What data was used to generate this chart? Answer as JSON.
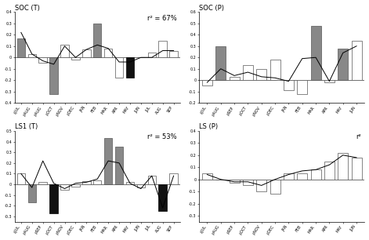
{
  "soc_t": {
    "title": "SOC (T)",
    "r2": "r² = 67%",
    "labels": [
      "pJUL",
      "pAUG",
      "pAUG",
      "pOCT",
      "pNOV",
      "pDEC",
      "JAN",
      "FEB",
      "MAR",
      "APR",
      "MAY",
      "JUN",
      "JUL",
      "AUG",
      "SEP"
    ],
    "bar_values": [
      0.17,
      0.03,
      -0.05,
      -0.32,
      0.11,
      -0.02,
      0.07,
      0.3,
      0.08,
      -0.18,
      -0.18,
      0.0,
      0.04,
      0.15,
      0.06
    ],
    "bar_colors": [
      "gray",
      "white",
      "white",
      "gray",
      "white",
      "white",
      "white",
      "gray",
      "white",
      "white",
      "black",
      "white",
      "white",
      "white",
      "white"
    ],
    "line_values": [
      0.22,
      0.03,
      -0.03,
      -0.06,
      0.1,
      0.0,
      0.07,
      0.11,
      0.08,
      -0.04,
      -0.04,
      0.0,
      0.0,
      0.06,
      0.06
    ],
    "ylim": [
      -0.4,
      0.4
    ],
    "yticks": [
      -0.4,
      -0.3,
      -0.2,
      -0.1,
      0.0,
      0.1,
      0.2,
      0.3,
      0.4
    ]
  },
  "soc_p": {
    "title": "SOC (P)",
    "r2": "",
    "labels": [
      "pJUL",
      "pAUG",
      "pSEP",
      "pOCT",
      "pNOV",
      "pDEC",
      "JAN",
      "FEB",
      "MAR",
      "APR",
      "MAY",
      "JUN"
    ],
    "bar_values": [
      -0.05,
      0.3,
      0.03,
      0.13,
      0.1,
      0.18,
      -0.09,
      -0.12,
      0.48,
      -0.02,
      0.28,
      0.35
    ],
    "bar_colors": [
      "white",
      "gray",
      "white",
      "white",
      "white",
      "white",
      "white",
      "white",
      "gray",
      "white",
      "gray",
      "white"
    ],
    "line_values": [
      -0.02,
      0.1,
      0.04,
      0.07,
      0.03,
      0.02,
      -0.01,
      0.19,
      0.2,
      -0.01,
      0.24,
      0.3
    ],
    "ylim": [
      -0.2,
      0.6
    ],
    "yticks": [
      -0.2,
      -0.1,
      0.0,
      0.1,
      0.2,
      0.3,
      0.4,
      0.5,
      0.6
    ]
  },
  "ls1_t": {
    "title": "LS1 (T)",
    "r2": "r² = 53%",
    "labels": [
      "pJUL",
      "pAUG",
      "pSEP",
      "pOCT",
      "pNOV",
      "pDEC",
      "JAN",
      "FEB",
      "MAR",
      "APR",
      "MAY",
      "JUN",
      "JUL",
      "AUG",
      "SEP"
    ],
    "bar_values": [
      0.1,
      -0.17,
      0.02,
      -0.27,
      -0.05,
      -0.02,
      0.03,
      0.04,
      0.43,
      0.35,
      0.02,
      -0.03,
      0.08,
      -0.25,
      0.1
    ],
    "bar_colors": [
      "white",
      "gray",
      "white",
      "black",
      "white",
      "white",
      "white",
      "white",
      "gray",
      "gray",
      "white",
      "white",
      "white",
      "black",
      "white"
    ],
    "line_values": [
      0.1,
      -0.03,
      0.22,
      0.01,
      -0.04,
      0.01,
      0.02,
      0.05,
      0.22,
      0.2,
      0.01,
      -0.04,
      0.08,
      -0.22,
      0.08
    ],
    "ylim": [
      -0.35,
      0.5
    ],
    "yticks": [
      -0.3,
      -0.2,
      -0.1,
      0.0,
      0.1,
      0.2,
      0.3,
      0.4,
      0.5
    ]
  },
  "ls_p": {
    "title": "LS (P)",
    "r2": "r²",
    "labels": [
      "pJUL",
      "pAUG",
      "pSEP",
      "pOCT",
      "pNOV",
      "pDEC",
      "JAN",
      "FEB",
      "MAR",
      "APR",
      "MAY",
      "JUN"
    ],
    "bar_values": [
      0.05,
      0.0,
      -0.03,
      -0.05,
      -0.1,
      -0.12,
      0.05,
      0.05,
      0.08,
      0.15,
      0.22,
      0.18
    ],
    "bar_colors": [
      "white",
      "white",
      "white",
      "white",
      "white",
      "white",
      "white",
      "white",
      "white",
      "white",
      "white",
      "white"
    ],
    "line_values": [
      0.04,
      0.0,
      -0.02,
      -0.02,
      -0.05,
      0.0,
      0.04,
      0.07,
      0.08,
      0.12,
      0.2,
      0.18
    ],
    "ylim": [
      -0.35,
      0.4
    ],
    "yticks": [
      -0.3,
      -0.2,
      -0.1,
      0.0,
      0.1,
      0.2,
      0.3,
      0.4
    ]
  }
}
